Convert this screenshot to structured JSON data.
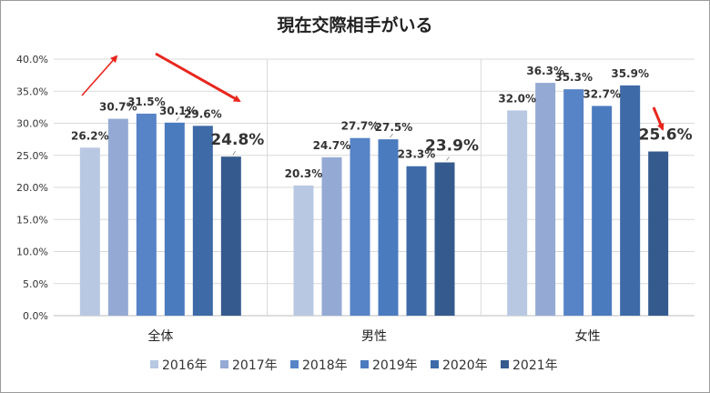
{
  "chart_data": {
    "type": "bar",
    "title": "現在交際相手がいる",
    "categories": [
      "全体",
      "男性",
      "女性"
    ],
    "series": [
      {
        "name": "2016年",
        "color": "#b9c8e2",
        "values": [
          26.2,
          20.3,
          32.0
        ]
      },
      {
        "name": "2017年",
        "color": "#94aad5",
        "values": [
          30.7,
          24.7,
          36.3
        ]
      },
      {
        "name": "2018年",
        "color": "#5783c7",
        "values": [
          31.5,
          27.7,
          35.3
        ]
      },
      {
        "name": "2019年",
        "color": "#4b7bbf",
        "values": [
          30.1,
          27.5,
          32.7
        ]
      },
      {
        "name": "2020年",
        "color": "#3e6aa8",
        "values": [
          29.6,
          23.3,
          35.9
        ]
      },
      {
        "name": "2021年",
        "color": "#355b8e",
        "values": [
          24.8,
          23.9,
          25.6
        ]
      }
    ],
    "value_labels": [
      [
        "26.2%",
        "20.3%",
        "32.0%"
      ],
      [
        "30.7%",
        "24.7%",
        "36.3%"
      ],
      [
        "31.5%",
        "27.7%",
        "35.3%"
      ],
      [
        "30.1%",
        "27.5%",
        "32.7%"
      ],
      [
        "29.6%",
        "23.3%",
        "35.9%"
      ],
      [
        "24.8%",
        "23.9%",
        "25.6%"
      ]
    ],
    "ylim": [
      0,
      40
    ],
    "y_ticks": [
      "0.0%",
      "5.0%",
      "10.0%",
      "15.0%",
      "20.0%",
      "25.0%",
      "30.0%",
      "35.0%",
      "40.0%"
    ],
    "grid": true,
    "legend": "bottom",
    "annotations": {
      "arrow_color": "#e8261d"
    }
  }
}
